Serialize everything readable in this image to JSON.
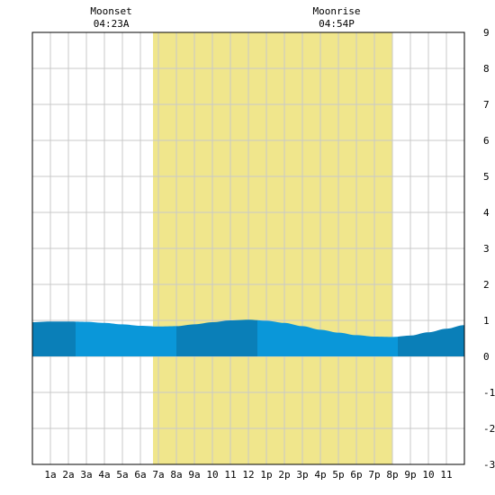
{
  "chart_data": {
    "type": "area",
    "x_unit": "hour",
    "xlim": [
      0,
      24
    ],
    "ylim": [
      -3,
      9
    ],
    "y_ticks": [
      -3,
      -2,
      -1,
      0,
      1,
      2,
      3,
      4,
      5,
      6,
      7,
      8,
      9
    ],
    "x_tick_labels": [
      "1a",
      "2a",
      "3a",
      "4a",
      "5a",
      "6a",
      "7a",
      "8a",
      "9a",
      "10",
      "11",
      "12",
      "1p",
      "2p",
      "3p",
      "4p",
      "5p",
      "6p",
      "7p",
      "8p",
      "9p",
      "10",
      "11"
    ],
    "grid": true,
    "daylight": {
      "start": 6.7,
      "end": 20.0,
      "color": "#f0e68c"
    },
    "annotations": [
      {
        "label": "Moonset",
        "time": "04:23A",
        "hour": 4.38
      },
      {
        "label": "Moonrise",
        "time": "04:54P",
        "hour": 16.9
      }
    ],
    "series": [
      {
        "x": [
          0,
          1,
          2,
          3,
          4,
          5,
          6,
          7,
          8,
          9,
          10,
          11,
          12,
          13,
          14,
          15,
          16,
          17,
          18,
          19,
          20,
          21,
          22,
          23,
          24
        ],
        "values": [
          0.95,
          0.97,
          0.97,
          0.96,
          0.93,
          0.89,
          0.85,
          0.83,
          0.84,
          0.89,
          0.95,
          1.0,
          1.02,
          0.99,
          0.93,
          0.84,
          0.74,
          0.66,
          0.59,
          0.55,
          0.54,
          0.58,
          0.67,
          0.77,
          0.87
        ]
      }
    ],
    "band_boundaries": [
      2.4,
      8.0,
      12.5,
      20.3
    ],
    "colors": {
      "fill_light": "#0a97d9",
      "fill_dark": "#0a7fb8",
      "grid": "#c8c8c8",
      "axis": "#000000"
    }
  }
}
